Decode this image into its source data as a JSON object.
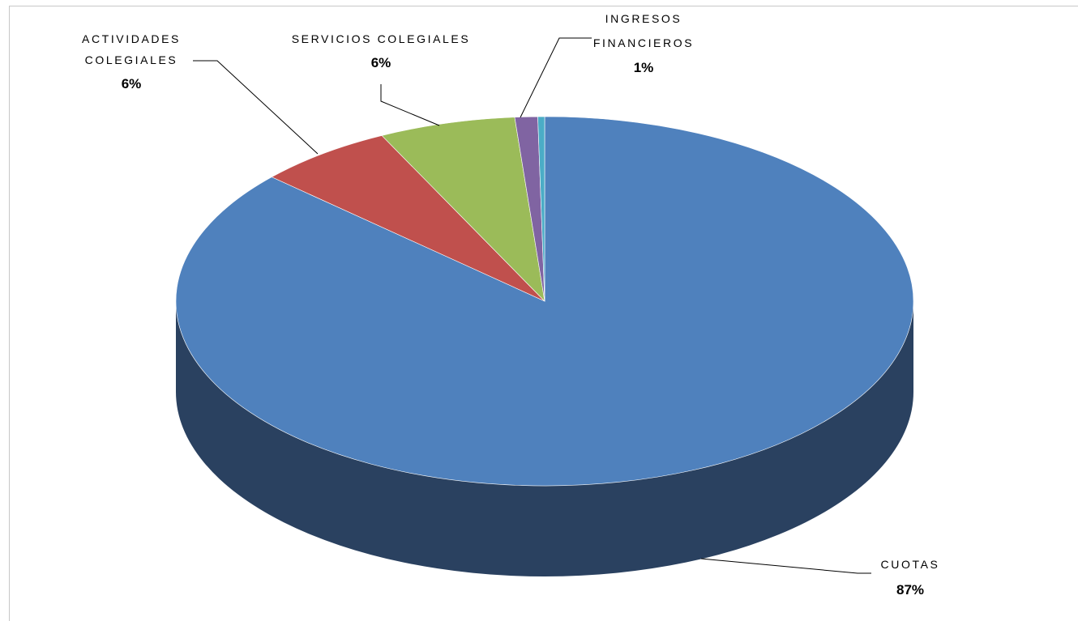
{
  "chart_data": {
    "type": "pie",
    "title": "",
    "style": "3d",
    "slices": [
      {
        "label": "CUOTAS",
        "value": 87,
        "pct_label": "87%",
        "color": "#4f81bd",
        "side_color": "#2a4160"
      },
      {
        "label": "ACTIVIDADES COLEGIALES",
        "value": 6,
        "pct_label": "6%",
        "color": "#c0504d",
        "side_color": "#7a2f2d"
      },
      {
        "label": "SERVICIOS COLEGIALES",
        "value": 6,
        "pct_label": "6%",
        "color": "#9bbb59",
        "side_color": "#5f7533"
      },
      {
        "label": "INGRESOS FINANCIEROS",
        "value": 1,
        "pct_label": "1%",
        "color": "#8064a2",
        "side_color": "#4c3a62"
      },
      {
        "label": "",
        "value": 0.3,
        "pct_label": "",
        "color": "#4bacc6",
        "side_color": "#2b6c7e"
      }
    ],
    "label_lines": {
      "CUOTAS": [
        "CUOTAS"
      ],
      "ACTIVIDADES COLEGIALES": [
        "ACTIVIDADES",
        "COLEGIALES"
      ],
      "SERVICIOS COLEGIALES": [
        "SERVICIOS COLEGIALES"
      ],
      "INGRESOS FINANCIEROS": [
        "INGRESOS",
        "FINANCIEROS"
      ]
    }
  }
}
